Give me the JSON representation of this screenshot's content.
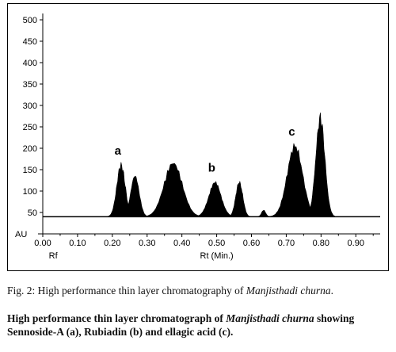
{
  "chart_data": {
    "type": "area",
    "y_unit_label": "AU",
    "x_left_label": "Rf",
    "xlabel": "Rt (Min.)",
    "yticks": [
      50,
      100,
      150,
      200,
      250,
      300,
      350,
      400,
      450,
      500
    ],
    "xticks": [
      "0.00",
      "0.10",
      "0.20",
      "0.30",
      "0.40",
      "0.50",
      "0.60",
      "0.70",
      "0.80",
      "0.90"
    ],
    "ylim": [
      0,
      500
    ],
    "xlim": [
      0.0,
      0.97
    ],
    "baseline": 40,
    "grid": false,
    "fill_color": "#000000",
    "peaks": [
      {
        "rf": 0.225,
        "height": 160,
        "width": 0.012
      },
      {
        "rf": 0.265,
        "height": 135,
        "width": 0.012
      },
      {
        "rf": 0.375,
        "height": 165,
        "width": 0.026
      },
      {
        "rf": 0.495,
        "height": 118,
        "width": 0.018
      },
      {
        "rf": 0.565,
        "height": 120,
        "width": 0.01
      },
      {
        "rf": 0.635,
        "height": 55,
        "width": 0.006
      },
      {
        "rf": 0.725,
        "height": 205,
        "width": 0.022
      },
      {
        "rf": 0.798,
        "height": 270,
        "width": 0.013
      }
    ],
    "labels": [
      {
        "text": "a",
        "rf": 0.225,
        "value": 185
      },
      {
        "text": "b",
        "rf": 0.495,
        "value": 145
      },
      {
        "text": "c",
        "rf": 0.725,
        "value": 230
      }
    ]
  },
  "caption": {
    "line1_prefix": "Fig. 2: High performance thin layer chromatography of ",
    "line1_italic": "Manjisthadi churna",
    "line1_suffix": ".",
    "line2_prefix": "High performance thin layer chromatograph of ",
    "line2_italic": "Manjisthadi churna",
    "line2_suffix": " showing  Sennoside-A (a),  Rubiadin (b) and ellagic acid (c)."
  }
}
